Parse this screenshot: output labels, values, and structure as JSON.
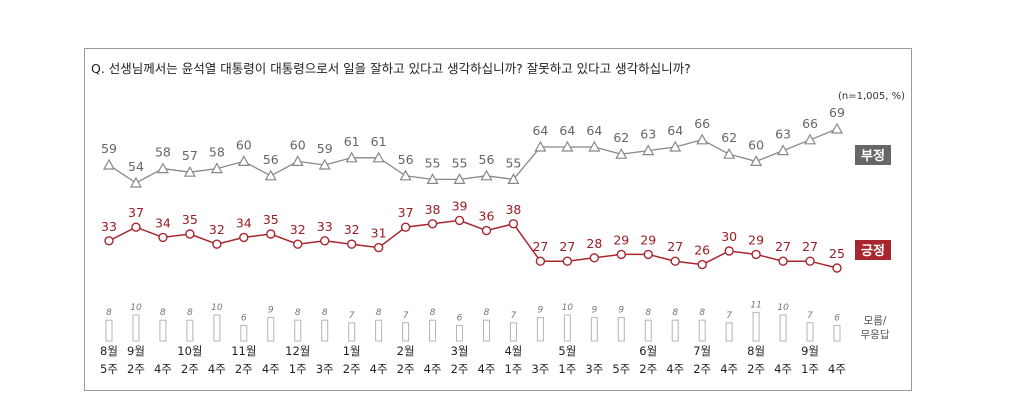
{
  "chart_data": {
    "type": "line",
    "title": "Q. 선생님께서는 윤석열 대통령이 대통령으로서 일을 잘하고 있다고 생각하십니까? 잘못하고 있다고 생각하십니까?",
    "unit_note": "(n=1,005,  %)",
    "x_month_labels": [
      "8월",
      "9월",
      "",
      "10월",
      "",
      "11월",
      "",
      "12월",
      "",
      "1월",
      "",
      "2월",
      "",
      "3월",
      "",
      "4월",
      "",
      "5월",
      "",
      "",
      "6월",
      "",
      "7월",
      "",
      "8월",
      "",
      "9월",
      ""
    ],
    "x_week_labels": [
      "5주",
      "2주",
      "4주",
      "2주",
      "4주",
      "2주",
      "4주",
      "1주",
      "3주",
      "2주",
      "4주",
      "2주",
      "4주",
      "2주",
      "4주",
      "1주",
      "3주",
      "1주",
      "3주",
      "5주",
      "2주",
      "4주",
      "2주",
      "4주",
      "2주",
      "4주",
      "1주",
      "4주"
    ],
    "series": [
      {
        "name": "부정",
        "color": "#888888",
        "marker": "triangle",
        "values": [
          59,
          54,
          58,
          57,
          58,
          60,
          56,
          60,
          59,
          61,
          61,
          56,
          55,
          55,
          56,
          55,
          64,
          64,
          64,
          62,
          63,
          64,
          66,
          62,
          60,
          63,
          66,
          69
        ]
      },
      {
        "name": "긍정",
        "color": "#a8262e",
        "marker": "circle",
        "values": [
          33,
          37,
          34,
          35,
          32,
          34,
          35,
          32,
          33,
          32,
          31,
          37,
          38,
          39,
          36,
          38,
          27,
          27,
          28,
          29,
          29,
          27,
          26,
          30,
          29,
          27,
          27,
          25
        ]
      },
      {
        "name": "모름/\n무응답",
        "color": "#c9c9c9",
        "marker": "bar",
        "values": [
          8,
          10,
          8,
          8,
          10,
          6,
          9,
          8,
          8,
          7,
          8,
          7,
          8,
          6,
          8,
          7,
          9,
          10,
          9,
          9,
          8,
          8,
          8,
          7,
          11,
          10,
          7,
          6
        ]
      }
    ],
    "legend": {
      "neg_label": "부정",
      "neg_color": "#666666",
      "pos_label": "긍정",
      "pos_color": "#a8262e",
      "dk_label_1": "모름/",
      "dk_label_2": "무응답"
    }
  }
}
